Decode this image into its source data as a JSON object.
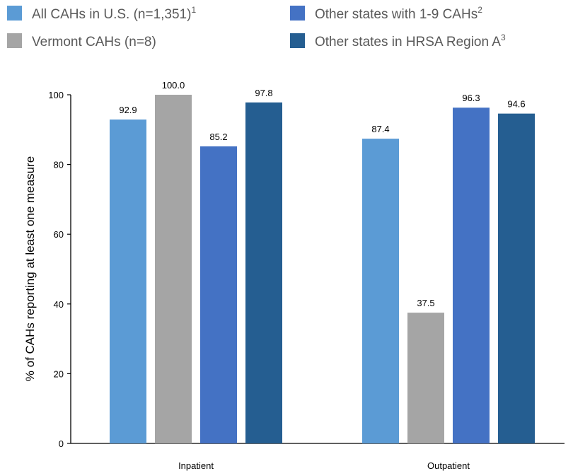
{
  "chart_data": {
    "type": "bar",
    "title": "",
    "xlabel": "",
    "ylabel": "% of CAHs reporting at least one measure",
    "ylim": [
      0,
      100
    ],
    "yticks": [
      0,
      20,
      40,
      60,
      80,
      100
    ],
    "grid": false,
    "legend_position": "top",
    "categories": [
      "Inpatient",
      "Outpatient"
    ],
    "series": [
      {
        "name": "All CAHs in U.S. (n=1,351)",
        "superscript": "1",
        "color": "#5b9bd5",
        "values": [
          92.9,
          87.4
        ],
        "labels": [
          "92.9",
          "87.4"
        ]
      },
      {
        "name": "Vermont CAHs (n=8)",
        "superscript": "",
        "color": "#a5a5a5",
        "values": [
          100.0,
          37.5
        ],
        "labels": [
          "100.0",
          "37.5"
        ]
      },
      {
        "name": "Other states with 1-9 CAHs",
        "superscript": "2",
        "color": "#4472c4",
        "values": [
          85.2,
          96.3
        ],
        "labels": [
          "85.2",
          "96.3"
        ]
      },
      {
        "name": "Other states in HRSA Region A",
        "superscript": "3",
        "color": "#255e91",
        "values": [
          97.8,
          94.6
        ],
        "labels": [
          "97.8",
          "94.6"
        ]
      }
    ]
  }
}
